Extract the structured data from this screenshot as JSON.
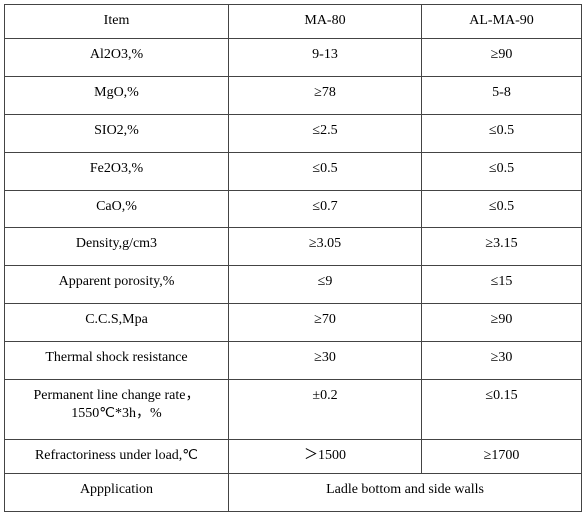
{
  "table": {
    "header": [
      "Item",
      "MA-80",
      "AL-MA-90"
    ],
    "rows": [
      [
        "Al2O3,%",
        "9-13",
        "≥90"
      ],
      [
        "MgO,%",
        "≥78",
        "5-8"
      ],
      [
        "SIO2,%",
        "≤2.5",
        "≤0.5"
      ],
      [
        "Fe2O3,%",
        "≤0.5",
        "≤0.5"
      ],
      [
        "CaO,%",
        "≤0.7",
        "≤0.5"
      ],
      [
        "Density,g/cm3",
        "≥3.05",
        "≥3.15"
      ],
      [
        "Apparent porosity,%",
        "≤9",
        "≤15"
      ],
      [
        "C.C.S,Mpa",
        "≥70",
        "≥90"
      ],
      [
        "Thermal shock resistance",
        "≥30",
        "≥30"
      ],
      [
        [
          "Permanent line change rate，",
          "1550℃*3h，%"
        ],
        "±0.2",
        "≤0.15"
      ],
      [
        "Refractoriness under load,℃",
        "＞1500",
        "≥1700"
      ],
      [
        "Appplication",
        "Ladle bottom and side walls"
      ]
    ]
  }
}
